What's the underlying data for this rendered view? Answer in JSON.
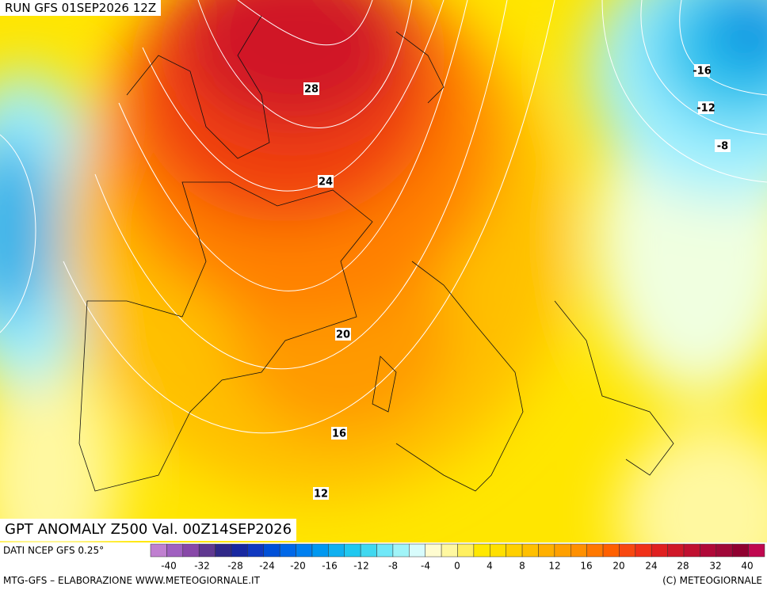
{
  "header": {
    "run": "RUN GFS 01SEP2026 12Z"
  },
  "title": "GPT ANOMALY Z500 Val. 00Z14SEP2026",
  "source": "DATI NCEP GFS 0.25°",
  "credit_left": "MTG-GFS – ELABORAZIONE WWW.METEOGIORNALE.IT",
  "credit_right": "(C) METEOGIORNALE",
  "contour_labels": [
    "-16",
    "-12",
    "-8",
    "28",
    "24",
    "20",
    "16",
    "12"
  ],
  "colorbar": {
    "labels": [
      "-40",
      "-32",
      "-28",
      "-24",
      "-20",
      "-16",
      "-12",
      "-8",
      "-4",
      "0",
      "4",
      "8",
      "12",
      "16",
      "20",
      "24",
      "28",
      "32",
      "40"
    ]
  }
}
